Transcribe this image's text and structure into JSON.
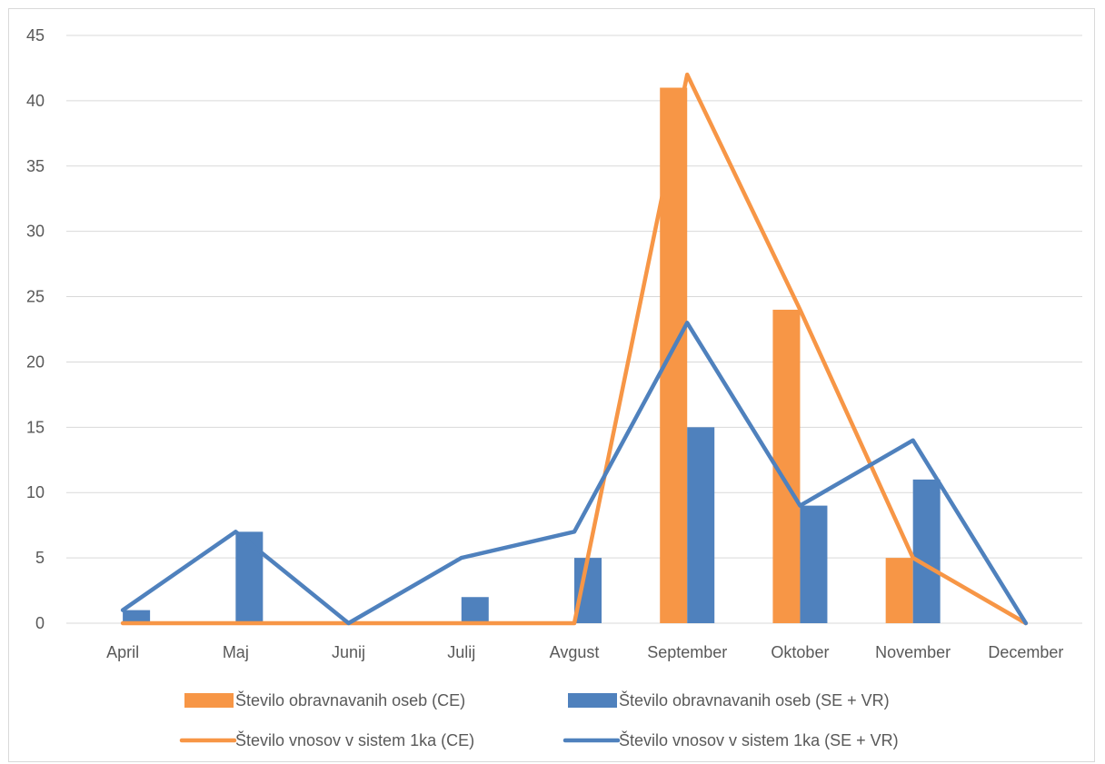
{
  "chart_data": {
    "type": "bar",
    "categories": [
      "April",
      "Maj",
      "Junij",
      "Julij",
      "Avgust",
      "September",
      "Oktober",
      "November",
      "December"
    ],
    "ylim": [
      0,
      45
    ],
    "yticks": [
      0,
      5,
      10,
      15,
      20,
      25,
      30,
      35,
      40,
      45
    ],
    "grid": true,
    "legend_position": "bottom",
    "series": [
      {
        "name": "Število obravnavanih oseb (CE)",
        "kind": "bar",
        "color": "#f79646",
        "values": [
          0,
          0,
          0,
          0,
          0,
          41,
          24,
          5,
          0
        ]
      },
      {
        "name": "Število obravnavanih oseb (SE + VR)",
        "kind": "bar",
        "color": "#4f81bd",
        "values": [
          1,
          7,
          0,
          2,
          5,
          15,
          9,
          11,
          0
        ]
      },
      {
        "name": "Število vnosov v sistem 1ka (CE)",
        "kind": "line",
        "color": "#f79646",
        "values": [
          0,
          0,
          0,
          0,
          0,
          42,
          24,
          5,
          0
        ]
      },
      {
        "name": "Število vnosov v sistem 1ka (SE + VR)",
        "kind": "line",
        "color": "#4f81bd",
        "values": [
          1,
          7,
          0,
          5,
          7,
          23,
          9,
          14,
          0
        ]
      }
    ]
  }
}
